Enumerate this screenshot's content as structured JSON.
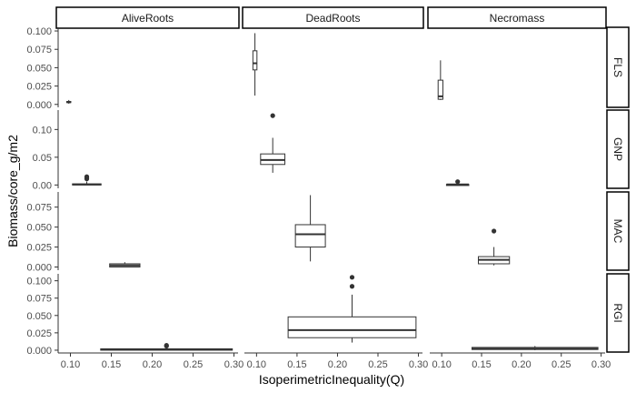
{
  "chart_data": {
    "type": "boxplot",
    "xlabel": "IsoperimetricInequality(Q)",
    "ylabel": "Biomass/core_g/m2",
    "columns": [
      "AliveRoots",
      "DeadRoots",
      "Necromass"
    ],
    "rows": [
      "FLS",
      "GNP",
      "MAC",
      "RGI"
    ],
    "xlim": [
      0.085,
      0.305
    ],
    "x_ticks": [
      0.1,
      0.15,
      0.2,
      0.25,
      0.3
    ],
    "x_tick_labels": [
      "0.10",
      "0.15",
      "0.20",
      "0.25",
      "0.30"
    ],
    "row_scales": [
      {
        "row": "FLS",
        "ylim": [
          -0.004,
          0.105
        ],
        "ticks": [
          0,
          0.025,
          0.05,
          0.075,
          0.1
        ],
        "tick_labels": [
          "0.000",
          "0.025",
          "0.050",
          "0.075",
          "0.100"
        ]
      },
      {
        "row": "GNP",
        "ylim": [
          -0.006,
          0.135
        ],
        "ticks": [
          0,
          0.05,
          0.1
        ],
        "tick_labels": [
          "0.00",
          "0.05",
          "0.10"
        ]
      },
      {
        "row": "MAC",
        "ylim": [
          -0.004,
          0.094
        ],
        "ticks": [
          0,
          0.025,
          0.05,
          0.075
        ],
        "tick_labels": [
          "0.000",
          "0.025",
          "0.050",
          "0.075"
        ]
      },
      {
        "row": "RGI",
        "ylim": [
          -0.004,
          0.11
        ],
        "ticks": [
          0,
          0.025,
          0.05,
          0.075,
          0.1
        ],
        "tick_labels": [
          "0.000",
          "0.025",
          "0.050",
          "0.075",
          "0.100"
        ]
      }
    ],
    "boxes": [
      {
        "row": "FLS",
        "column": "AliveRoots",
        "x": 0.098,
        "half_width": 0.0025,
        "min": 0.001,
        "q1": 0.0025,
        "median": 0.003,
        "q3": 0.004,
        "max": 0.006,
        "outliers": []
      },
      {
        "row": "FLS",
        "column": "DeadRoots",
        "x": 0.098,
        "half_width": 0.0025,
        "min": 0.012,
        "q1": 0.047,
        "median": 0.056,
        "q3": 0.073,
        "max": 0.097,
        "outliers": []
      },
      {
        "row": "FLS",
        "column": "Necromass",
        "x": 0.0985,
        "half_width": 0.003,
        "min": 0.006,
        "q1": 0.007,
        "median": 0.011,
        "q3": 0.033,
        "max": 0.06,
        "outliers": []
      },
      {
        "row": "GNP",
        "column": "AliveRoots",
        "x": 0.12,
        "half_width": 0.0175,
        "min": 0.0,
        "q1": 0.0005,
        "median": 0.001,
        "q3": 0.002,
        "max": 0.006,
        "outliers": [
          0.011,
          0.013,
          0.015
        ]
      },
      {
        "row": "GNP",
        "column": "DeadRoots",
        "x": 0.12,
        "half_width": 0.015,
        "min": 0.022,
        "q1": 0.037,
        "median": 0.045,
        "q3": 0.056,
        "max": 0.085,
        "outliers": [
          0.125
        ]
      },
      {
        "row": "GNP",
        "column": "Necromass",
        "x": 0.12,
        "half_width": 0.014,
        "min": 0.0,
        "q1": 0.0,
        "median": 0.001,
        "q3": 0.001,
        "max": 0.002,
        "outliers": [
          0.006
        ]
      },
      {
        "row": "MAC",
        "column": "AliveRoots",
        "x": 0.1665,
        "half_width": 0.0185,
        "min": 0.0,
        "q1": 0.0,
        "median": 0.002,
        "q3": 0.004,
        "max": 0.006,
        "outliers": []
      },
      {
        "row": "MAC",
        "column": "DeadRoots",
        "x": 0.1665,
        "half_width": 0.0185,
        "min": 0.007,
        "q1": 0.025,
        "median": 0.041,
        "q3": 0.053,
        "max": 0.09,
        "outliers": []
      },
      {
        "row": "MAC",
        "column": "Necromass",
        "x": 0.1655,
        "half_width": 0.0195,
        "min": 0.002,
        "q1": 0.004,
        "median": 0.009,
        "q3": 0.013,
        "max": 0.025,
        "outliers": [
          0.045
        ]
      },
      {
        "row": "RGI",
        "column": "AliveRoots",
        "x": 0.2175,
        "half_width": 0.0805,
        "min": 0.0,
        "q1": 0.0,
        "median": 0.001,
        "q3": 0.002,
        "max": 0.003,
        "outliers": [
          0.006,
          0.007
        ]
      },
      {
        "row": "RGI",
        "column": "DeadRoots",
        "x": 0.218,
        "half_width": 0.079,
        "min": 0.011,
        "q1": 0.018,
        "median": 0.029,
        "q3": 0.048,
        "max": 0.08,
        "outliers": [
          0.092,
          0.105
        ]
      },
      {
        "row": "RGI",
        "column": "Necromass",
        "x": 0.217,
        "half_width": 0.079,
        "min": 0.0,
        "q1": 0.001,
        "median": 0.002,
        "q3": 0.004,
        "max": 0.006,
        "outliers": []
      }
    ]
  }
}
